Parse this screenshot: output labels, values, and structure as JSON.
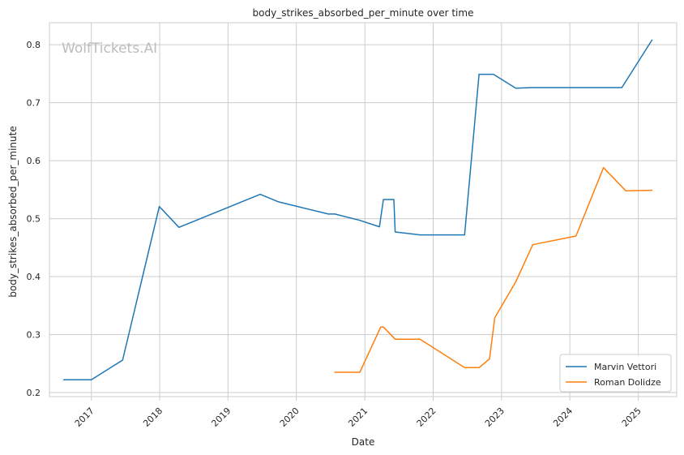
{
  "chart_data": {
    "type": "line",
    "title": "body_strikes_absorbed_per_minute over time",
    "xlabel": "Date",
    "ylabel": "body_strikes_absorbed_per_minute",
    "watermark": "WolfTickets.AI",
    "x_ticks": [
      "2017",
      "2018",
      "2019",
      "2020",
      "2021",
      "2022",
      "2023",
      "2024",
      "2025"
    ],
    "y_ticks": [
      "0.2",
      "0.3",
      "0.4",
      "0.5",
      "0.6",
      "0.7",
      "0.8"
    ],
    "xlim": [
      "2016-05-22",
      "2025-07-25"
    ],
    "ylim": [
      0.193,
      0.838
    ],
    "grid": true,
    "legend_position": "lower-right",
    "series": [
      {
        "name": "Marvin Vettori",
        "color": "#1f77b4",
        "points": [
          [
            "2016-08-06",
            0.222
          ],
          [
            "2017-01-01",
            0.222
          ],
          [
            "2017-06-17",
            0.256
          ],
          [
            "2017-12-30",
            0.521
          ],
          [
            "2018-04-14",
            0.485
          ],
          [
            "2019-06-22",
            0.542
          ],
          [
            "2019-09-28",
            0.529
          ],
          [
            "2020-06-20",
            0.508
          ],
          [
            "2020-07-25",
            0.508
          ],
          [
            "2020-12-05",
            0.497
          ],
          [
            "2021-03-20",
            0.486
          ],
          [
            "2021-04-10",
            0.533
          ],
          [
            "2021-06-05",
            0.533
          ],
          [
            "2021-06-12",
            0.477
          ],
          [
            "2021-10-23",
            0.472
          ],
          [
            "2022-06-18",
            0.472
          ],
          [
            "2022-09-03",
            0.749
          ],
          [
            "2022-11-19",
            0.749
          ],
          [
            "2023-03-18",
            0.725
          ],
          [
            "2023-06-10",
            0.726
          ],
          [
            "2024-10-05",
            0.726
          ],
          [
            "2025-03-15",
            0.808
          ]
        ]
      },
      {
        "name": "Roman Dolidze",
        "color": "#ff7f0e",
        "points": [
          [
            "2020-07-25",
            0.235
          ],
          [
            "2020-12-05",
            0.235
          ],
          [
            "2021-03-27",
            0.313
          ],
          [
            "2021-04-10",
            0.313
          ],
          [
            "2021-06-12",
            0.292
          ],
          [
            "2021-10-23",
            0.292
          ],
          [
            "2022-06-18",
            0.243
          ],
          [
            "2022-09-03",
            0.243
          ],
          [
            "2022-10-29",
            0.258
          ],
          [
            "2022-11-26",
            0.329
          ],
          [
            "2023-03-18",
            0.391
          ],
          [
            "2023-06-17",
            0.455
          ],
          [
            "2024-02-03",
            0.47
          ],
          [
            "2024-06-29",
            0.588
          ],
          [
            "2024-10-26",
            0.548
          ],
          [
            "2025-03-15",
            0.549
          ]
        ]
      }
    ]
  }
}
